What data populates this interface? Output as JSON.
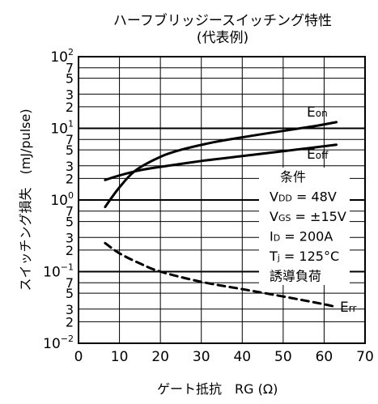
{
  "chart_data": {
    "type": "line",
    "title": "ハーフブリッジースイッチング特性",
    "subtitle": "(代表例)",
    "xlabel_main": "ゲート抵抗",
    "xlabel_symbol": "RG (Ω)",
    "ylabel": "スイッチング損失　(mJ/pulse)",
    "x_scale": "linear",
    "y_scale": "log",
    "xlim": [
      0,
      70
    ],
    "ylim": [
      0.01,
      100
    ],
    "x_ticks": [
      "0",
      "10",
      "20",
      "30",
      "40",
      "50",
      "60",
      "70"
    ],
    "y_decades": [
      {
        "value": 100,
        "base": "10",
        "exp": "2"
      },
      {
        "value": 10,
        "base": "10",
        "exp": "1"
      },
      {
        "value": 1,
        "base": "10",
        "exp": "0"
      },
      {
        "value": 0.1,
        "base": "10",
        "exp": "−1"
      },
      {
        "value": 0.01,
        "base": "10",
        "exp": "−2"
      }
    ],
    "y_minor_labels": [
      "7",
      "5",
      "3",
      "2"
    ],
    "grid": true,
    "series": [
      {
        "name": "Eon",
        "label_main": "E",
        "label_sub": "on",
        "style": "solid",
        "x": [
          6.5,
          10,
          14,
          20,
          25,
          33,
          40,
          50,
          58,
          63
        ],
        "y": [
          0.8,
          1.5,
          2.6,
          4.0,
          5.0,
          6.4,
          7.5,
          9.2,
          10.8,
          12.2
        ]
      },
      {
        "name": "Eoff",
        "label_main": "E",
        "label_sub": "off",
        "style": "solid",
        "x": [
          6.5,
          10,
          15,
          20,
          30,
          40,
          50,
          63
        ],
        "y": [
          1.9,
          2.2,
          2.6,
          2.9,
          3.5,
          4.1,
          4.8,
          5.9
        ]
      },
      {
        "name": "Err",
        "label_main": "E",
        "label_sub": "rr",
        "style": "dashed",
        "x": [
          6.5,
          10,
          15,
          20,
          30,
          40,
          50,
          60,
          63
        ],
        "y": [
          0.25,
          0.18,
          0.13,
          0.1,
          0.072,
          0.057,
          0.045,
          0.035,
          0.032
        ]
      }
    ],
    "conditions_title": "条件",
    "conditions": [
      {
        "main": "V",
        "sub": "DD",
        "rest": " = 48V"
      },
      {
        "main": "V",
        "sub": "GS",
        "rest": " = ±15V"
      },
      {
        "main": "I",
        "sub": "D",
        "rest": " = 200A"
      },
      {
        "main": "T",
        "sub": "j",
        "rest": " = 125°C"
      },
      {
        "main": "誘導負荷",
        "sub": "",
        "rest": ""
      }
    ],
    "colors": {
      "line": "#000000",
      "background": "#ffffff"
    }
  }
}
